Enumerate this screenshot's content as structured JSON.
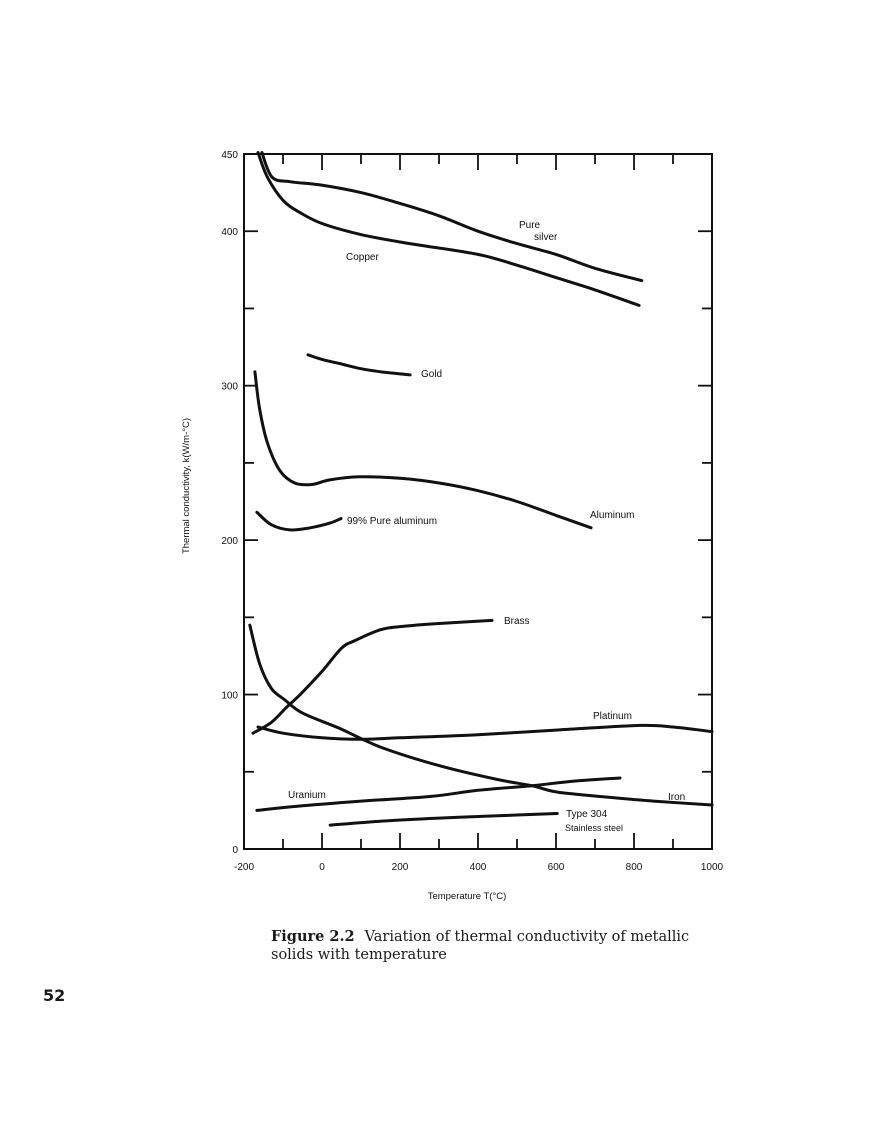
{
  "page": {
    "page_number": "52",
    "caption": {
      "figure_number": "Figure 2.2",
      "text": "Variation of thermal conductivity of metallic solids with temperature"
    }
  },
  "chart_data": {
    "type": "line",
    "title": "Variation of thermal conductivity of metallic solids with temperature",
    "xlabel": "Temperature T(°C)",
    "ylabel": "Thermal conductivity, k(W/m-°C)",
    "xlim": [
      -200,
      1000
    ],
    "ylim": [
      0,
      450
    ],
    "x_ticks_labeled": [
      -200,
      0,
      200,
      400,
      600,
      800,
      1000
    ],
    "x_tick_labels": [
      "-200",
      "0",
      "200",
      "400",
      "600",
      "800",
      "1000"
    ],
    "x_ticks_minor": [
      -100,
      100,
      300,
      500,
      700,
      900
    ],
    "y_ticks_labeled": [
      0,
      100,
      200,
      300,
      400,
      450
    ],
    "y_tick_labels": [
      "0",
      "100",
      "200",
      "300",
      "400",
      "450"
    ],
    "y_ticks_minor": [
      50,
      150,
      250,
      350
    ],
    "grid": false,
    "legend": "none (curves labeled directly)",
    "series": [
      {
        "name": "Pure silver",
        "label": "Pure\nsilver",
        "points": [
          [
            -154,
            451
          ],
          [
            -128,
            435
          ],
          [
            -80,
            432
          ],
          [
            -5,
            430
          ],
          [
            100,
            425
          ],
          [
            200,
            418
          ],
          [
            300,
            410
          ],
          [
            400,
            400
          ],
          [
            500,
            392
          ],
          [
            600,
            385
          ],
          [
            700,
            376
          ],
          [
            820,
            368
          ]
        ]
      },
      {
        "name": "Copper",
        "label": "Copper",
        "points": [
          [
            -164,
            451
          ],
          [
            -140,
            435
          ],
          [
            -100,
            420
          ],
          [
            -56,
            412
          ],
          [
            0,
            405
          ],
          [
            97,
            398
          ],
          [
            200,
            393
          ],
          [
            250,
            391
          ],
          [
            400,
            385
          ],
          [
            500,
            378
          ],
          [
            600,
            370
          ],
          [
            700,
            362
          ],
          [
            813,
            352
          ]
        ]
      },
      {
        "name": "Gold",
        "label": "Gold",
        "points": [
          [
            -36,
            320
          ],
          [
            0,
            317
          ],
          [
            50,
            314
          ],
          [
            100,
            311
          ],
          [
            150,
            309
          ],
          [
            226,
            307
          ]
        ]
      },
      {
        "name": "Aluminum",
        "label": "Aluminum",
        "points": [
          [
            -172,
            309
          ],
          [
            -160,
            285
          ],
          [
            -140,
            263
          ],
          [
            -108,
            245
          ],
          [
            -70,
            237
          ],
          [
            -26,
            236
          ],
          [
            20,
            239
          ],
          [
            97,
            241
          ],
          [
            200,
            240
          ],
          [
            300,
            237
          ],
          [
            400,
            232
          ],
          [
            500,
            225
          ],
          [
            600,
            216
          ],
          [
            690,
            208
          ]
        ]
      },
      {
        "name": "99% Pure aluminum",
        "label": "99% Pure aluminum",
        "points": [
          [
            -167,
            218
          ],
          [
            -130,
            210
          ],
          [
            -82,
            206.6
          ],
          [
            -30,
            208
          ],
          [
            20,
            211
          ],
          [
            49,
            214
          ]
        ]
      },
      {
        "name": "Brass",
        "label": "Brass",
        "points": [
          [
            -177,
            75
          ],
          [
            -130,
            82
          ],
          [
            -90,
            92
          ],
          [
            -56,
            100
          ],
          [
            0,
            115
          ],
          [
            50,
            130
          ],
          [
            85,
            135
          ],
          [
            150,
            142
          ],
          [
            200,
            144
          ],
          [
            300,
            146
          ],
          [
            436,
            148
          ]
        ]
      },
      {
        "name": "Iron",
        "label": "Iron",
        "points": [
          [
            -185,
            145
          ],
          [
            -160,
            120
          ],
          [
            -130,
            104
          ],
          [
            -95,
            96.5
          ],
          [
            -50,
            88
          ],
          [
            46,
            78
          ],
          [
            150,
            66
          ],
          [
            300,
            54
          ],
          [
            450,
            45
          ],
          [
            538,
            41
          ],
          [
            600,
            37
          ],
          [
            713,
            34
          ],
          [
            850,
            31
          ],
          [
            1000,
            28.5
          ]
        ]
      },
      {
        "name": "Platinum",
        "label": "Platinum",
        "points": [
          [
            -164,
            79
          ],
          [
            -100,
            75
          ],
          [
            0,
            72
          ],
          [
            90,
            71
          ],
          [
            200,
            72
          ],
          [
            400,
            74
          ],
          [
            600,
            77
          ],
          [
            815,
            80
          ],
          [
            900,
            79
          ],
          [
            1000,
            76
          ]
        ]
      },
      {
        "name": "Uranium",
        "label": "Uranium",
        "points": [
          [
            -167,
            25
          ],
          [
            -50,
            28
          ],
          [
            100,
            31
          ],
          [
            277,
            34
          ],
          [
            400,
            38
          ],
          [
            538,
            41
          ],
          [
            650,
            44
          ],
          [
            764,
            46
          ]
        ]
      },
      {
        "name": "Type 304 Stainless steel",
        "label": "Type 304\nStainless steel",
        "points": [
          [
            21,
            15.5
          ],
          [
            150,
            18
          ],
          [
            300,
            20
          ],
          [
            450,
            21.5
          ],
          [
            603,
            23
          ]
        ]
      }
    ],
    "annotations": [
      {
        "text": "Pure",
        "near_series": "Pure silver"
      },
      {
        "text": "silver",
        "near_series": "Pure silver"
      },
      {
        "text": "Copper",
        "near_series": "Copper"
      },
      {
        "text": "Gold",
        "near_series": "Gold"
      },
      {
        "text": "Aluminum",
        "near_series": "Aluminum"
      },
      {
        "text": "99% Pure aluminum",
        "near_series": "99% Pure aluminum"
      },
      {
        "text": "Brass",
        "near_series": "Brass"
      },
      {
        "text": "Platinum",
        "near_series": "Platinum"
      },
      {
        "text": "Uranium",
        "near_series": "Uranium"
      },
      {
        "text": "Iron",
        "near_series": "Iron"
      },
      {
        "text": "Type 304",
        "near_series": "Type 304 Stainless steel"
      },
      {
        "text": "Stainless steel",
        "near_series": "Type 304 Stainless steel"
      }
    ]
  },
  "chart_labels": {
    "silver_1": "Pure",
    "silver_2": "silver",
    "copper": "Copper",
    "gold": "Gold",
    "aluminum": "Aluminum",
    "pure_aluminum": "99% Pure aluminum",
    "brass": "Brass",
    "platinum": "Platinum",
    "uranium": "Uranium",
    "iron": "Iron",
    "ss_1": "Type 304",
    "ss_2": "Stainless steel",
    "xlabel": "Temperature T(°C)",
    "ylabel": "Thermal conductivity, k(W/m-°C)"
  },
  "style": {
    "line_color": "#111111",
    "background": "#ffffff"
  }
}
